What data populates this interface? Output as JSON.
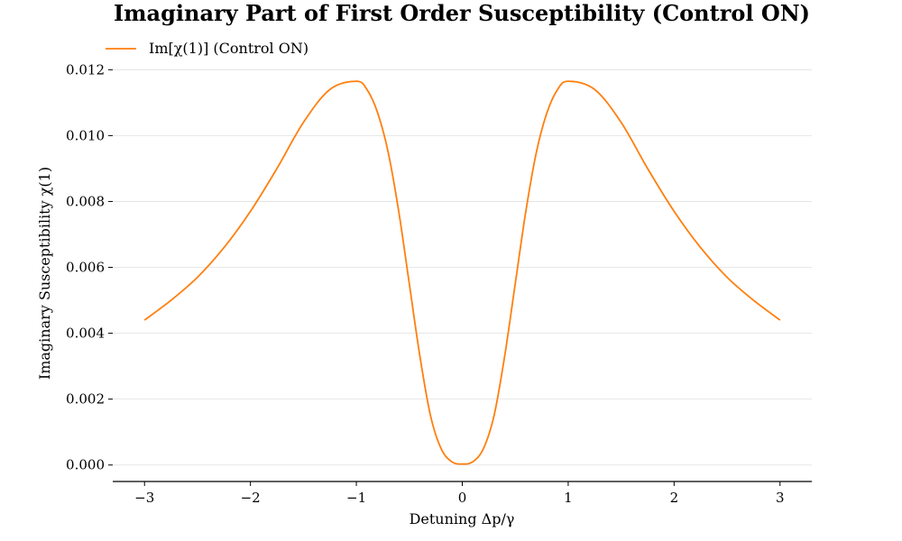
{
  "chart_data": {
    "type": "line",
    "title": "Imaginary Part of First Order Susceptibility (Control ON)",
    "xlabel": "Detuning Δp/γ",
    "ylabel": "Imaginary Susceptibility χ(1)",
    "xlim": [
      -3.3,
      3.3
    ],
    "ylim": [
      -0.0005,
      0.0122
    ],
    "x_ticks": [
      -3,
      -2,
      -1,
      0,
      1,
      2,
      3
    ],
    "x_tick_labels": [
      "−3",
      "−2",
      "−1",
      "0",
      "1",
      "2",
      "3"
    ],
    "y_ticks": [
      0.0,
      0.002,
      0.004,
      0.006,
      0.008,
      0.01,
      0.012
    ],
    "y_tick_labels": [
      "0.000",
      "0.002",
      "0.004",
      "0.006",
      "0.008",
      "0.010",
      "0.012"
    ],
    "grid": "horizontal",
    "legend_position": "top-left",
    "series": [
      {
        "name": "Im[χ(1)] (Control ON)",
        "color": "#ff7f0e",
        "x": [
          -3.0,
          -2.75,
          -2.5,
          -2.25,
          -2.0,
          -1.75,
          -1.5,
          -1.25,
          -1.0,
          -0.9,
          -0.8,
          -0.7,
          -0.6,
          -0.5,
          -0.4,
          -0.3,
          -0.2,
          -0.1,
          0.0,
          0.1,
          0.2,
          0.3,
          0.4,
          0.5,
          0.6,
          0.7,
          0.8,
          0.9,
          1.0,
          1.25,
          1.5,
          1.75,
          2.0,
          2.25,
          2.5,
          2.75,
          3.0
        ],
        "y": [
          0.0044,
          0.005,
          0.0057,
          0.0066,
          0.0077,
          0.009,
          0.0104,
          0.0114,
          0.01165,
          0.0114,
          0.0107,
          0.0095,
          0.0077,
          0.0055,
          0.0033,
          0.0015,
          0.0005,
          0.0001,
          3e-05,
          0.0001,
          0.0005,
          0.0015,
          0.0033,
          0.0055,
          0.0077,
          0.0095,
          0.0107,
          0.0114,
          0.01165,
          0.0114,
          0.0104,
          0.009,
          0.0077,
          0.0066,
          0.0057,
          0.005,
          0.0044
        ]
      }
    ]
  }
}
